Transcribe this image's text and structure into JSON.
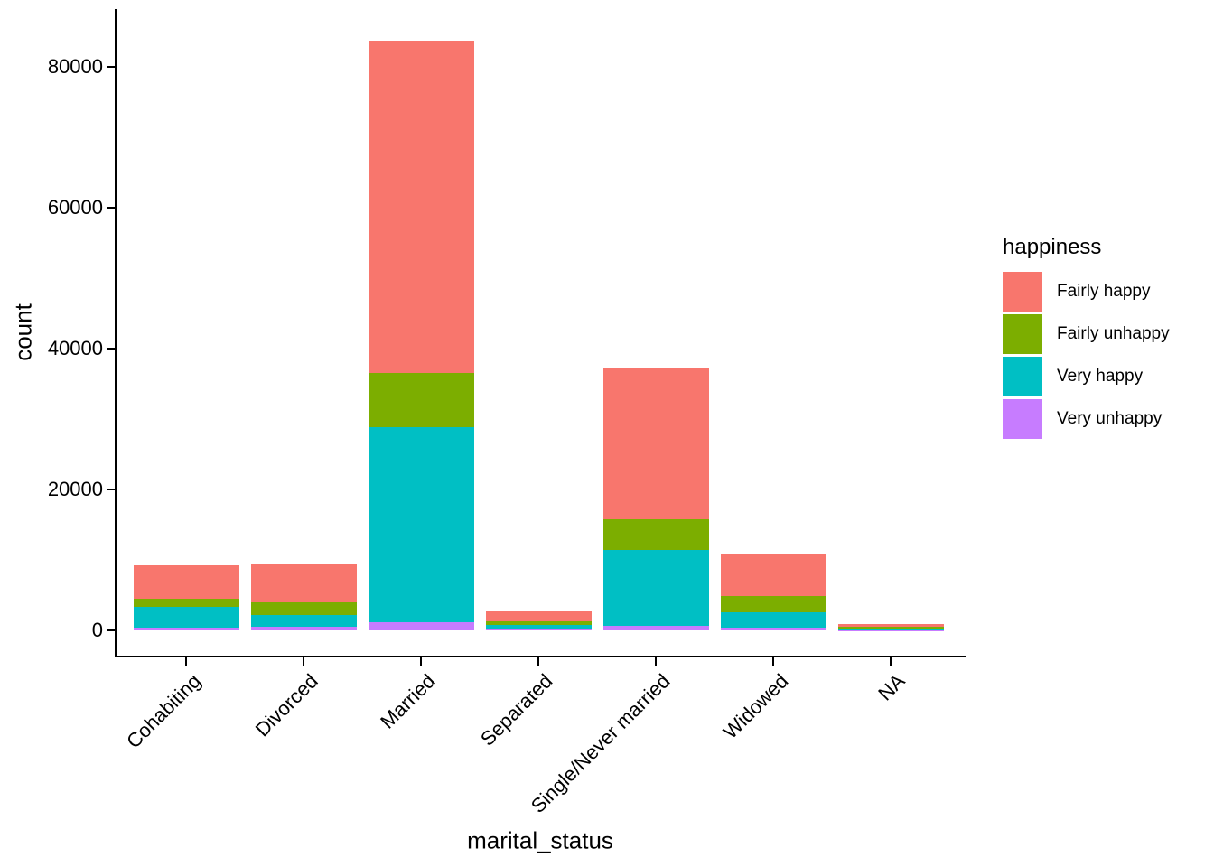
{
  "figure": {
    "y_axis_title": "count",
    "x_axis_title": "marital_status",
    "legend_title": "happiness"
  },
  "chart_data": {
    "type": "bar",
    "stacked": true,
    "title": "",
    "xlabel": "marital_status",
    "ylabel": "count",
    "categories": [
      "Cohabiting",
      "Divorced",
      "Married",
      "Separated",
      "Single/Never married",
      "Widowed",
      "NA"
    ],
    "series": [
      {
        "name": "Fairly happy",
        "color": "#F8766D",
        "values": [
          4750,
          5400,
          47100,
          1550,
          21400,
          6000,
          400
        ]
      },
      {
        "name": "Fairly unhappy",
        "color": "#7CAE00",
        "values": [
          1150,
          1800,
          7700,
          500,
          4350,
          2300,
          250
        ]
      },
      {
        "name": "Very happy",
        "color": "#00BFC4",
        "values": [
          2900,
          1700,
          27800,
          650,
          10800,
          2200,
          250
        ]
      },
      {
        "name": "Very unhappy",
        "color": "#C77CFF",
        "values": [
          400,
          500,
          1100,
          150,
          650,
          400,
          60
        ]
      }
    ],
    "stack_order_bottom_to_top": [
      "Very unhappy",
      "Very happy",
      "Fairly unhappy",
      "Fairly happy"
    ],
    "totals": [
      9200,
      9400,
      83700,
      2850,
      37200,
      10900,
      960
    ],
    "y_ticks": [
      0,
      20000,
      40000,
      60000,
      80000
    ],
    "ylim": [
      0,
      88000
    ],
    "grid": false,
    "legend_position": "right",
    "axis_color": "#000000",
    "background_color": "#FFFFFF"
  }
}
